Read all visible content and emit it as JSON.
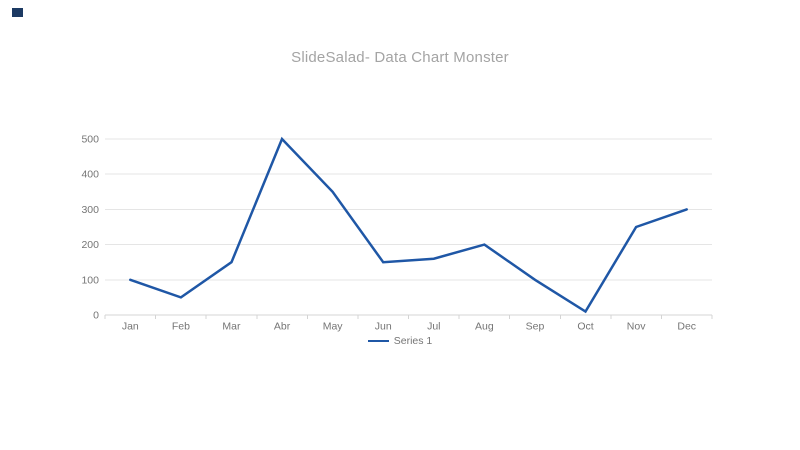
{
  "logo": {
    "color": "#1c3a63"
  },
  "chart_data": {
    "type": "line",
    "title": "SlideSalad- Data Chart Monster",
    "title_color": "#a4a4a4",
    "categories": [
      "Jan",
      "Feb",
      "Mar",
      "Abr",
      "May",
      "Jun",
      "Jul",
      "Aug",
      "Sep",
      "Oct",
      "Nov",
      "Dec"
    ],
    "series": [
      {
        "name": "Series 1",
        "color": "#1f57a6",
        "values": [
          100,
          50,
          150,
          500,
          350,
          150,
          160,
          200,
          100,
          10,
          250,
          300
        ]
      }
    ],
    "xlabel": "",
    "ylabel": "",
    "ylim": [
      0,
      500
    ],
    "yticks": [
      0,
      100,
      200,
      300,
      400,
      500
    ],
    "grid": "horizontal",
    "legend_position": "bottom",
    "axis_label_color": "#757575",
    "gridline_color": "#e5e5e5",
    "axis_line_color": "#d4d4d4",
    "tick_color": "#d4d4d4",
    "legend_text_color": "#757575"
  }
}
